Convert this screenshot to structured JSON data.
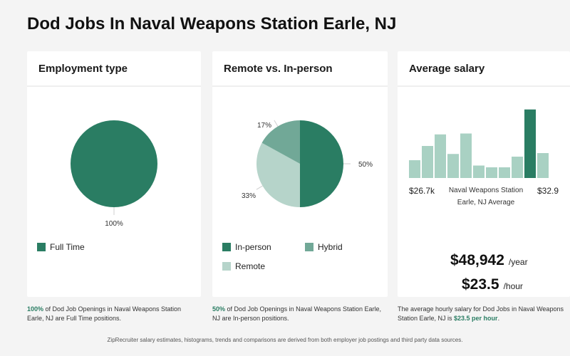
{
  "page": {
    "title": "Dod Jobs In Naval Weapons Station Earle, NJ",
    "footer": "ZipRecruiter salary estimates, histograms, trends and comparisons are derived from both employer job postings and third party data sources."
  },
  "colors": {
    "dark": "#2a7d63",
    "mid": "#71a897",
    "light": "#b6d4ca",
    "bar": "#a9d1c3",
    "bar_highlight": "#2a7d63"
  },
  "employment": {
    "heading": "Employment type",
    "caption_strong": "100%",
    "caption_rest": " of Dod Job Openings in Naval Weapons Station Earle, NJ are Full Time positions."
  },
  "remote": {
    "heading": "Remote vs. In-person",
    "caption_strong": "50%",
    "caption_rest": " of Dod Job Openings in Naval Weapons Station Earle, NJ are In-person positions."
  },
  "salary": {
    "heading": "Average salary",
    "min_label": "$26.7k",
    "max_label": "$32.9",
    "center_label_1": "Naval Weapons Station",
    "center_label_2": "Earle, NJ Average",
    "yearly": "$48,942",
    "yearly_unit": "/year",
    "hourly": "$23.5",
    "hourly_unit": "/hour",
    "caption_a": "The average hourly salary for Dod Jobs in Naval Weapons Station Earle, NJ is ",
    "caption_strong": "$23.5 per hour",
    "caption_b": "."
  },
  "chart_data": [
    {
      "type": "pie",
      "title": "Employment type",
      "slices": [
        {
          "label": "Full Time",
          "value": 100,
          "display": "100%"
        }
      ],
      "legend": [
        "Full Time"
      ]
    },
    {
      "type": "pie",
      "title": "Remote vs. In-person",
      "slices": [
        {
          "label": "In-person",
          "value": 50,
          "display": "50%"
        },
        {
          "label": "Remote",
          "value": 33,
          "display": "33%"
        },
        {
          "label": "Hybrid",
          "value": 17,
          "display": "17%"
        }
      ],
      "legend": [
        "In-person",
        "Hybrid",
        "Remote"
      ]
    },
    {
      "type": "bar",
      "title": "Average salary",
      "values": [
        20,
        36,
        49,
        27,
        50,
        14,
        12,
        12,
        24,
        77,
        28
      ],
      "highlight_index": 9,
      "x_labels": [
        "$26.7k",
        "Naval Weapons Station Earle, NJ Average",
        "$32.9"
      ]
    }
  ]
}
